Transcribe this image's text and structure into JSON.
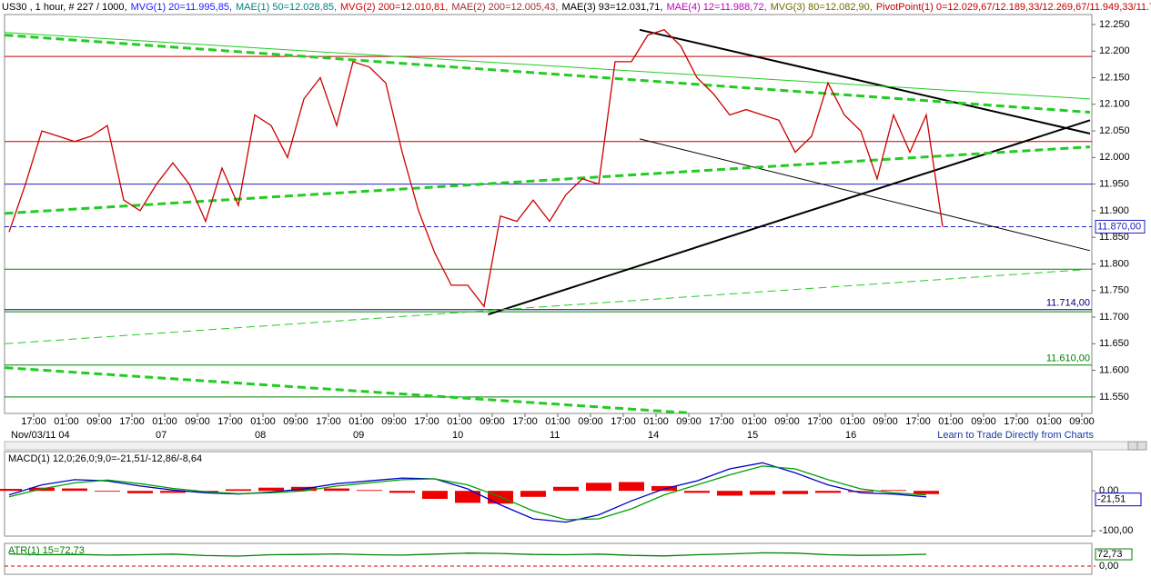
{
  "chart_data": [
    {
      "type": "line",
      "title": "US30",
      "header": [
        {
          "text": "US30 , 1 hour, # 227 / 1000,",
          "color": "#000000"
        },
        {
          "text": "MVG(1) 20=11.995,85,",
          "color": "#1a1aff"
        },
        {
          "text": "MAE(1) 50=12.028,85,",
          "color": "#008080"
        },
        {
          "text": "MVG(2) 200=12.010,81,",
          "color": "#d40000"
        },
        {
          "text": "MAE(2) 200=12.005,43,",
          "color": "#a03030"
        },
        {
          "text": "MAE(3) 93=12.031,71,",
          "color": "#000000"
        },
        {
          "text": "MAE(4) 12=11.988,72,",
          "color": "#c000c0"
        },
        {
          "text": "MVG(3) 80=12.082,90,",
          "color": "#6b6b00"
        },
        {
          "text": "PivotPoint(1) 0=12.029,67/12.189,33/12.269,67/11.949,33/11.789,67",
          "color": "#c00000"
        }
      ],
      "series": [
        {
          "name": "US30",
          "color": "#cc0000",
          "values": [
            11860,
            11950,
            12050,
            12040,
            12030,
            12040,
            12060,
            11920,
            11900,
            11950,
            11990,
            11950,
            11880,
            11980,
            11910,
            12080,
            12060,
            12000,
            12110,
            12150,
            12060,
            12180,
            12170,
            12140,
            12010,
            11900,
            11820,
            11760,
            11760,
            11720,
            11890,
            11880,
            11920,
            11880,
            11930,
            11960,
            11950,
            12180,
            12180,
            12230,
            12240,
            12210,
            12150,
            12120,
            12080,
            12090,
            12080,
            12070,
            12010,
            12040,
            12140,
            12080,
            12050,
            11960,
            12080,
            12010,
            12080,
            11870
          ]
        }
      ],
      "ylim": [
        11519,
        12296
      ],
      "yticks": [
        {
          "value": 12250,
          "label": "12.250"
        },
        {
          "value": 12200,
          "label": "12.200"
        },
        {
          "value": 12150,
          "label": "12.150"
        },
        {
          "value": 12100,
          "label": "12.100"
        },
        {
          "value": 12050,
          "label": "12.050"
        },
        {
          "value": 12000,
          "label": "12.000"
        },
        {
          "value": 11950,
          "label": "11.950"
        },
        {
          "value": 11900,
          "label": "11.900"
        },
        {
          "value": 11850,
          "label": "11.850"
        },
        {
          "value": 11800,
          "label": "11.800"
        },
        {
          "value": 11750,
          "label": "11.750"
        },
        {
          "value": 11700,
          "label": "11.700"
        },
        {
          "value": 11650,
          "label": "11.650"
        },
        {
          "value": 11600,
          "label": "11.600"
        },
        {
          "value": 11550,
          "label": "11.550"
        }
      ],
      "levels": [
        {
          "value": 12190,
          "color": "#c00000",
          "dash": false
        },
        {
          "value": 12030,
          "color": "#c00000",
          "dash": false
        },
        {
          "value": 11950,
          "color": "#2020c0",
          "dash": false
        },
        {
          "value": 11870,
          "color": "#2020c0",
          "dash": true,
          "label": "11.870,00"
        },
        {
          "value": 11790,
          "color": "#008000",
          "dash": false
        },
        {
          "value": 11714,
          "color": "#000080",
          "dash": false,
          "label": "11.714,00"
        },
        {
          "value": 11710,
          "color": "#008000",
          "dash": false
        },
        {
          "value": 11610,
          "color": "#008000",
          "dash": false,
          "label": "11.610,00"
        },
        {
          "value": 11550,
          "color": "#008000",
          "dash": false
        }
      ],
      "trendlines": [
        {
          "color": "#000000",
          "width": 2,
          "dash": false,
          "x": [
            117,
            264
          ],
          "y": [
            11705,
            12070
          ]
        },
        {
          "color": "#000000",
          "width": 2,
          "dash": false,
          "x": [
            154,
            264
          ],
          "y": [
            12240,
            12045
          ]
        },
        {
          "color": "#000000",
          "width": 1,
          "dash": false,
          "x": [
            154,
            264
          ],
          "y": [
            12035,
            11825
          ]
        },
        {
          "color": "#22cc22",
          "width": 3,
          "dash": true,
          "x": [
            -1,
            264
          ],
          "y": [
            12230,
            12085
          ]
        },
        {
          "color": "#22cc22",
          "width": 3,
          "dash": true,
          "x": [
            -1,
            264
          ],
          "y": [
            11895,
            12020
          ]
        },
        {
          "color": "#22cc22",
          "width": 3,
          "dash": true,
          "x": [
            -1,
            166
          ],
          "y": [
            11605,
            11520
          ]
        },
        {
          "color": "#22cc22",
          "width": 1,
          "dash": false,
          "x": [
            -1,
            264
          ],
          "y": [
            12235,
            12110
          ]
        },
        {
          "color": "#22cc22",
          "width": 1,
          "dash": true,
          "x": [
            -1,
            264
          ],
          "y": [
            11650,
            11790
          ]
        }
      ],
      "time_labels": [
        "17:00",
        "01:00",
        "09:00",
        "17:00",
        "01:00",
        "09:00",
        "17:00",
        "01:00",
        "09:00",
        "17:00",
        "01:00",
        "09:00",
        "17:00",
        "01:00",
        "09:00",
        "17:00",
        "01:00",
        "09:00",
        "17:00",
        "01:00",
        "09:00",
        "17:00",
        "01:00",
        "09:00",
        "17:00",
        "01:00",
        "09:00",
        "17:00",
        "01:00",
        "09:00",
        "17:00",
        "01:00",
        "09:00"
      ],
      "date_labels": [
        "Nov/03/11 04",
        "07",
        "08",
        "09",
        "10",
        "11",
        "14",
        "15",
        "16"
      ],
      "footer": "Learn to Trade Directly from Charts"
    },
    {
      "type": "macd",
      "title": "MACD(1) 12,0;26,0;9,0=-21,51/-12,86/-8,64",
      "series": [
        {
          "name": "MACD",
          "color": "#0000cc",
          "values": [
            -10,
            15,
            28,
            25,
            12,
            2,
            -5,
            -8,
            -3,
            5,
            18,
            25,
            32,
            30,
            5,
            -35,
            -70,
            -78,
            -60,
            -25,
            5,
            25,
            55,
            70,
            45,
            15,
            -5,
            -8,
            -15
          ]
        },
        {
          "name": "Signal",
          "color": "#00a000",
          "values": [
            -15,
            5,
            20,
            27,
            18,
            6,
            -2,
            -7,
            -5,
            0,
            12,
            20,
            28,
            30,
            15,
            -15,
            -50,
            -72,
            -70,
            -45,
            -10,
            15,
            40,
            62,
            55,
            28,
            5,
            -5,
            -10
          ]
        },
        {
          "name": "Histogram",
          "color": "#ee0000",
          "values": [
            5,
            8,
            6,
            -2,
            -6,
            -5,
            -3,
            4,
            8,
            10,
            6,
            2,
            -5,
            -20,
            -30,
            -32,
            -15,
            10,
            20,
            22,
            12,
            -5,
            -12,
            -10,
            -8,
            -5,
            -3,
            2,
            -8
          ]
        }
      ],
      "ylim": [
        -113,
        98
      ],
      "yticks": [
        {
          "value": 0,
          "label": "0,00"
        },
        {
          "value": -100,
          "label": "-100,00"
        }
      ],
      "current": {
        "value": -21.51,
        "label": "-21,51"
      }
    },
    {
      "type": "atr",
      "title": "ATR(1) 15=72,73",
      "series": [
        {
          "name": "ATR",
          "color": "#008000",
          "values": [
            75,
            70,
            72,
            68,
            70,
            74,
            65,
            62,
            70,
            72,
            75,
            70,
            68,
            74,
            80,
            78,
            72,
            70,
            74,
            66,
            63,
            70,
            75,
            82,
            80,
            70,
            66,
            68,
            73
          ]
        }
      ],
      "ylim": [
        -50,
        140
      ],
      "yticks": [
        {
          "value": 0,
          "label": "0,00"
        }
      ],
      "current": {
        "value": 72.73,
        "label": "72,73"
      }
    }
  ]
}
